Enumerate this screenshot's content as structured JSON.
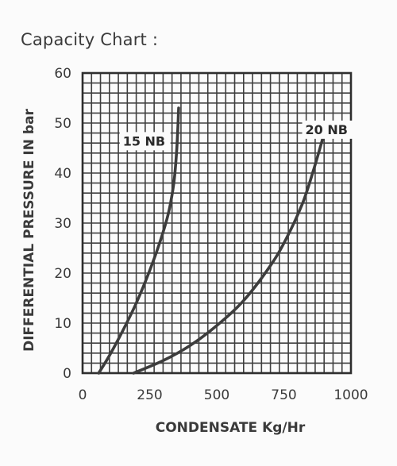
{
  "heading": "Capacity Chart :",
  "chart_data": {
    "type": "line",
    "title": "Capacity Chart :",
    "xlabel": "CONDENSATE Kg/Hr",
    "ylabel": "DIFFERENTIAL PRESSURE IN bar",
    "xlim": [
      0,
      1000
    ],
    "ylim": [
      0,
      60
    ],
    "x_ticks": [
      "0",
      "250",
      "500",
      "750",
      "1000"
    ],
    "y_ticks": [
      "0",
      "10",
      "20",
      "30",
      "40",
      "50",
      "60"
    ],
    "grid": true,
    "series": [
      {
        "name": "15 NB",
        "x": [
          60,
          100,
          150,
          200,
          250,
          290,
          320,
          340,
          350,
          355,
          358
        ],
        "y": [
          0,
          3.5,
          8.5,
          14,
          20.5,
          26.5,
          32,
          38,
          44,
          49,
          53
        ]
      },
      {
        "name": "20 NB",
        "x": [
          190,
          300,
          400,
          500,
          600,
          700,
          760,
          820,
          860,
          890,
          910
        ],
        "y": [
          0,
          2.5,
          5.5,
          9.5,
          14.5,
          21.5,
          27,
          34,
          40.5,
          46,
          50
        ]
      }
    ],
    "colors": {
      "grid": "#3f3f3f",
      "curve": "#3c3c3c",
      "text": "#3a3a3a"
    }
  }
}
